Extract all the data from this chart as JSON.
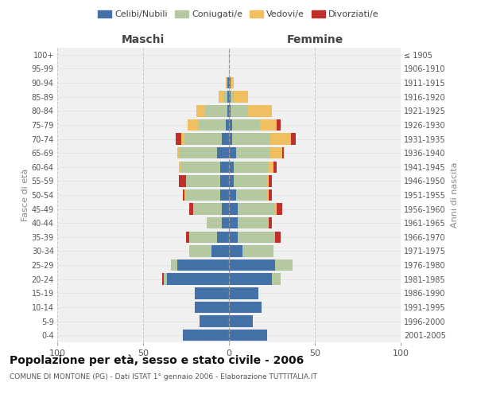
{
  "age_groups": [
    "0-4",
    "5-9",
    "10-14",
    "15-19",
    "20-24",
    "25-29",
    "30-34",
    "35-39",
    "40-44",
    "45-49",
    "50-54",
    "55-59",
    "60-64",
    "65-69",
    "70-74",
    "75-79",
    "80-84",
    "85-89",
    "90-94",
    "95-99",
    "100+"
  ],
  "birth_years": [
    "2001-2005",
    "1996-2000",
    "1991-1995",
    "1986-1990",
    "1981-1985",
    "1976-1980",
    "1971-1975",
    "1966-1970",
    "1961-1965",
    "1956-1960",
    "1951-1955",
    "1946-1950",
    "1941-1945",
    "1936-1940",
    "1931-1935",
    "1926-1930",
    "1921-1925",
    "1916-1920",
    "1911-1915",
    "1906-1910",
    "≤ 1905"
  ],
  "male": {
    "celibi": [
      27,
      17,
      20,
      20,
      36,
      30,
      10,
      7,
      4,
      4,
      5,
      5,
      5,
      7,
      4,
      2,
      1,
      1,
      1,
      0,
      0
    ],
    "coniugati": [
      0,
      0,
      0,
      0,
      2,
      4,
      13,
      16,
      9,
      17,
      20,
      20,
      23,
      22,
      22,
      16,
      13,
      2,
      0,
      0,
      0
    ],
    "vedovi": [
      0,
      0,
      0,
      0,
      0,
      0,
      0,
      0,
      0,
      0,
      1,
      0,
      1,
      1,
      2,
      6,
      5,
      3,
      1,
      0,
      0
    ],
    "divorziati": [
      0,
      0,
      0,
      0,
      1,
      0,
      0,
      2,
      0,
      2,
      1,
      4,
      0,
      0,
      3,
      0,
      0,
      0,
      0,
      0,
      0
    ]
  },
  "female": {
    "nubili": [
      22,
      14,
      19,
      17,
      25,
      27,
      8,
      5,
      5,
      5,
      4,
      3,
      3,
      4,
      2,
      2,
      1,
      1,
      1,
      0,
      0
    ],
    "coniugate": [
      0,
      0,
      0,
      0,
      5,
      10,
      18,
      22,
      18,
      22,
      18,
      19,
      20,
      20,
      22,
      16,
      10,
      2,
      0,
      0,
      0
    ],
    "vedove": [
      0,
      0,
      0,
      0,
      0,
      0,
      0,
      0,
      0,
      1,
      1,
      1,
      3,
      7,
      12,
      10,
      14,
      8,
      2,
      0,
      0
    ],
    "divorziate": [
      0,
      0,
      0,
      0,
      0,
      0,
      0,
      3,
      2,
      3,
      2,
      2,
      2,
      1,
      3,
      2,
      0,
      0,
      0,
      0,
      0
    ]
  },
  "colors": {
    "celibi": "#4472a8",
    "coniugati": "#b5c9a0",
    "vedovi": "#f0c060",
    "divorziati": "#c0302a"
  },
  "legend_labels": [
    "Celibi/Nubili",
    "Coniugati/e",
    "Vedovi/e",
    "Divorziati/e"
  ],
  "title": "Popolazione per età, sesso e stato civile - 2006",
  "subtitle": "COMUNE DI MONTONE (PG) - Dati ISTAT 1° gennaio 2006 - Elaborazione TUTTITALIA.IT",
  "xlabel_left": "Maschi",
  "xlabel_right": "Femmine",
  "ylabel_left": "Fasce di età",
  "ylabel_right": "Anni di nascita",
  "xlim": 100,
  "background_color": "#ffffff"
}
